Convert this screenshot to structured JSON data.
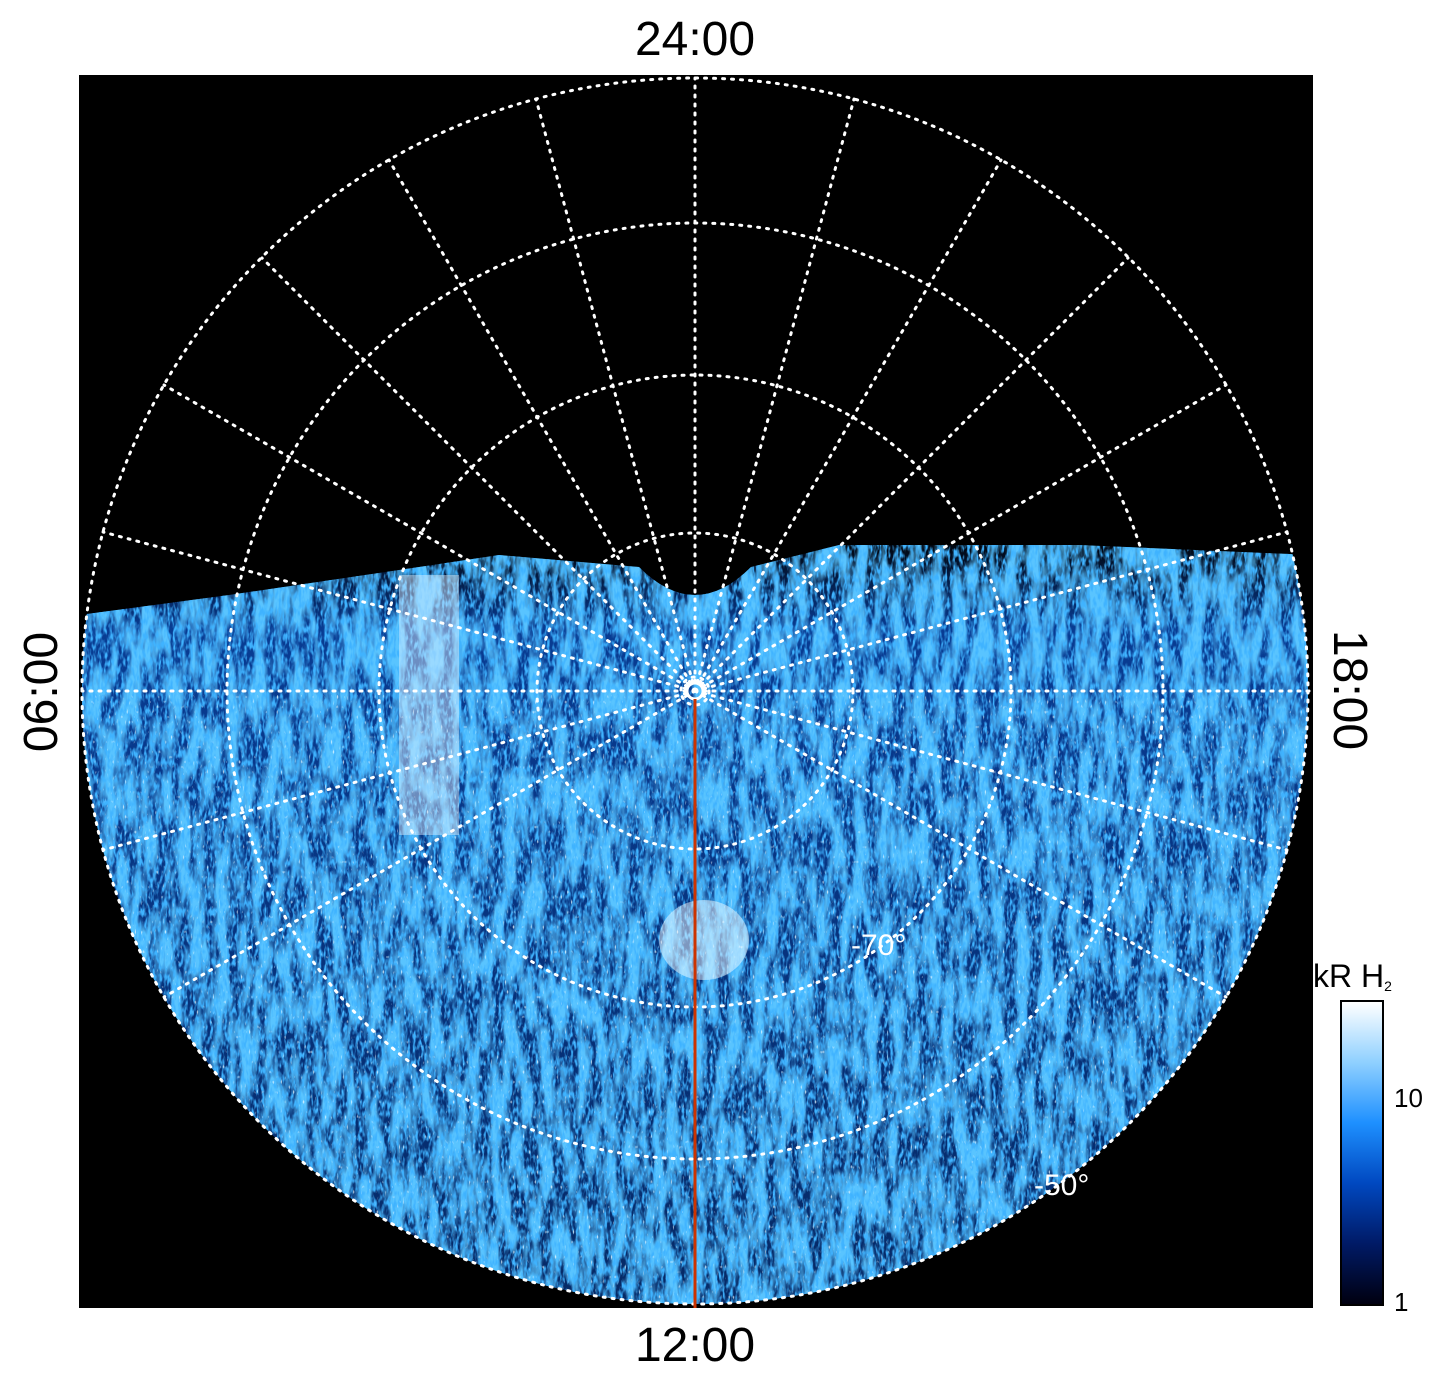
{
  "axes": {
    "top_label": "24:00",
    "bottom_label": "12:00",
    "left_label": "06:00",
    "right_label": "18:00"
  },
  "grid": {
    "latitude_labels": [
      "-70°",
      "-50°"
    ]
  },
  "colorbar": {
    "title": "kR H",
    "title_subscript": "2",
    "ticks": [
      "10",
      "1"
    ],
    "colors": [
      "#000010",
      "#001a66",
      "#0048c0",
      "#1e90ff",
      "#8fd0ff",
      "#ffffff"
    ]
  },
  "colors": {
    "background": "#000000",
    "grid": "#ffffff",
    "meridian_line": "#cc3300",
    "emission_mid": "#1e7fe6"
  }
}
